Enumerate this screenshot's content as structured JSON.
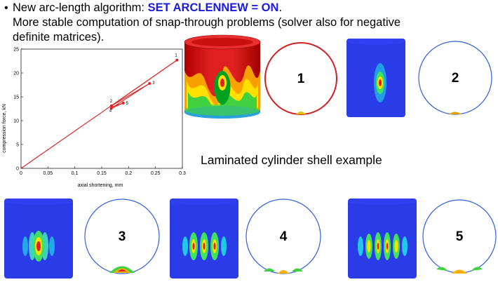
{
  "header": {
    "bullet": "•",
    "line1_prefix": "New arc-length algorithm: ",
    "line1_highlight": "SET ARCLENNEW = ON",
    "line1_suffix": ".",
    "line2": "More stable computation of snap-through problems (solver also for negative",
    "line3": "definite matrices).",
    "highlight_color": "#1a1ae0"
  },
  "caption": "Laminated cylinder shell example",
  "mode_labels": [
    "1",
    "2",
    "3",
    "4",
    "5"
  ],
  "chart_data": {
    "type": "line",
    "xlabel": "axial shortening, mm",
    "ylabel": "compression force, kN",
    "xlim": [
      0,
      0.3
    ],
    "ylim": [
      0,
      25
    ],
    "x_ticks": [
      "0",
      "0.05",
      "0.1",
      "0.15",
      "0.2",
      "0.25",
      "0.3"
    ],
    "y_ticks": [
      "0",
      "5",
      "10",
      "15",
      "20",
      "25"
    ],
    "series": [
      {
        "x": [
          0,
          0.29
        ],
        "y": [
          0,
          22.7
        ]
      },
      {
        "x": [
          0.29,
          0.168
        ],
        "y": [
          22.7,
          13.1
        ]
      },
      {
        "x": [
          0.168,
          0.239
        ],
        "y": [
          13.1,
          17.8
        ]
      },
      {
        "x": [
          0.239,
          0.168
        ],
        "y": [
          17.8,
          12.6
        ]
      },
      {
        "x": [
          0.168,
          0.19
        ],
        "y": [
          12.6,
          13.7
        ]
      },
      {
        "x": [
          0.19,
          0.17
        ],
        "y": [
          13.7,
          12.9
        ]
      }
    ],
    "points": [
      {
        "label": "1",
        "x": 0.29,
        "y": 22.7
      },
      {
        "label": "2",
        "x": 0.168,
        "y": 13.1
      },
      {
        "label": "3",
        "x": 0.239,
        "y": 17.8
      },
      {
        "label": "4",
        "x": 0.168,
        "y": 12.6
      },
      {
        "label": "5",
        "x": 0.19,
        "y": 13.7
      }
    ],
    "color": "#e02020",
    "grid": false
  }
}
